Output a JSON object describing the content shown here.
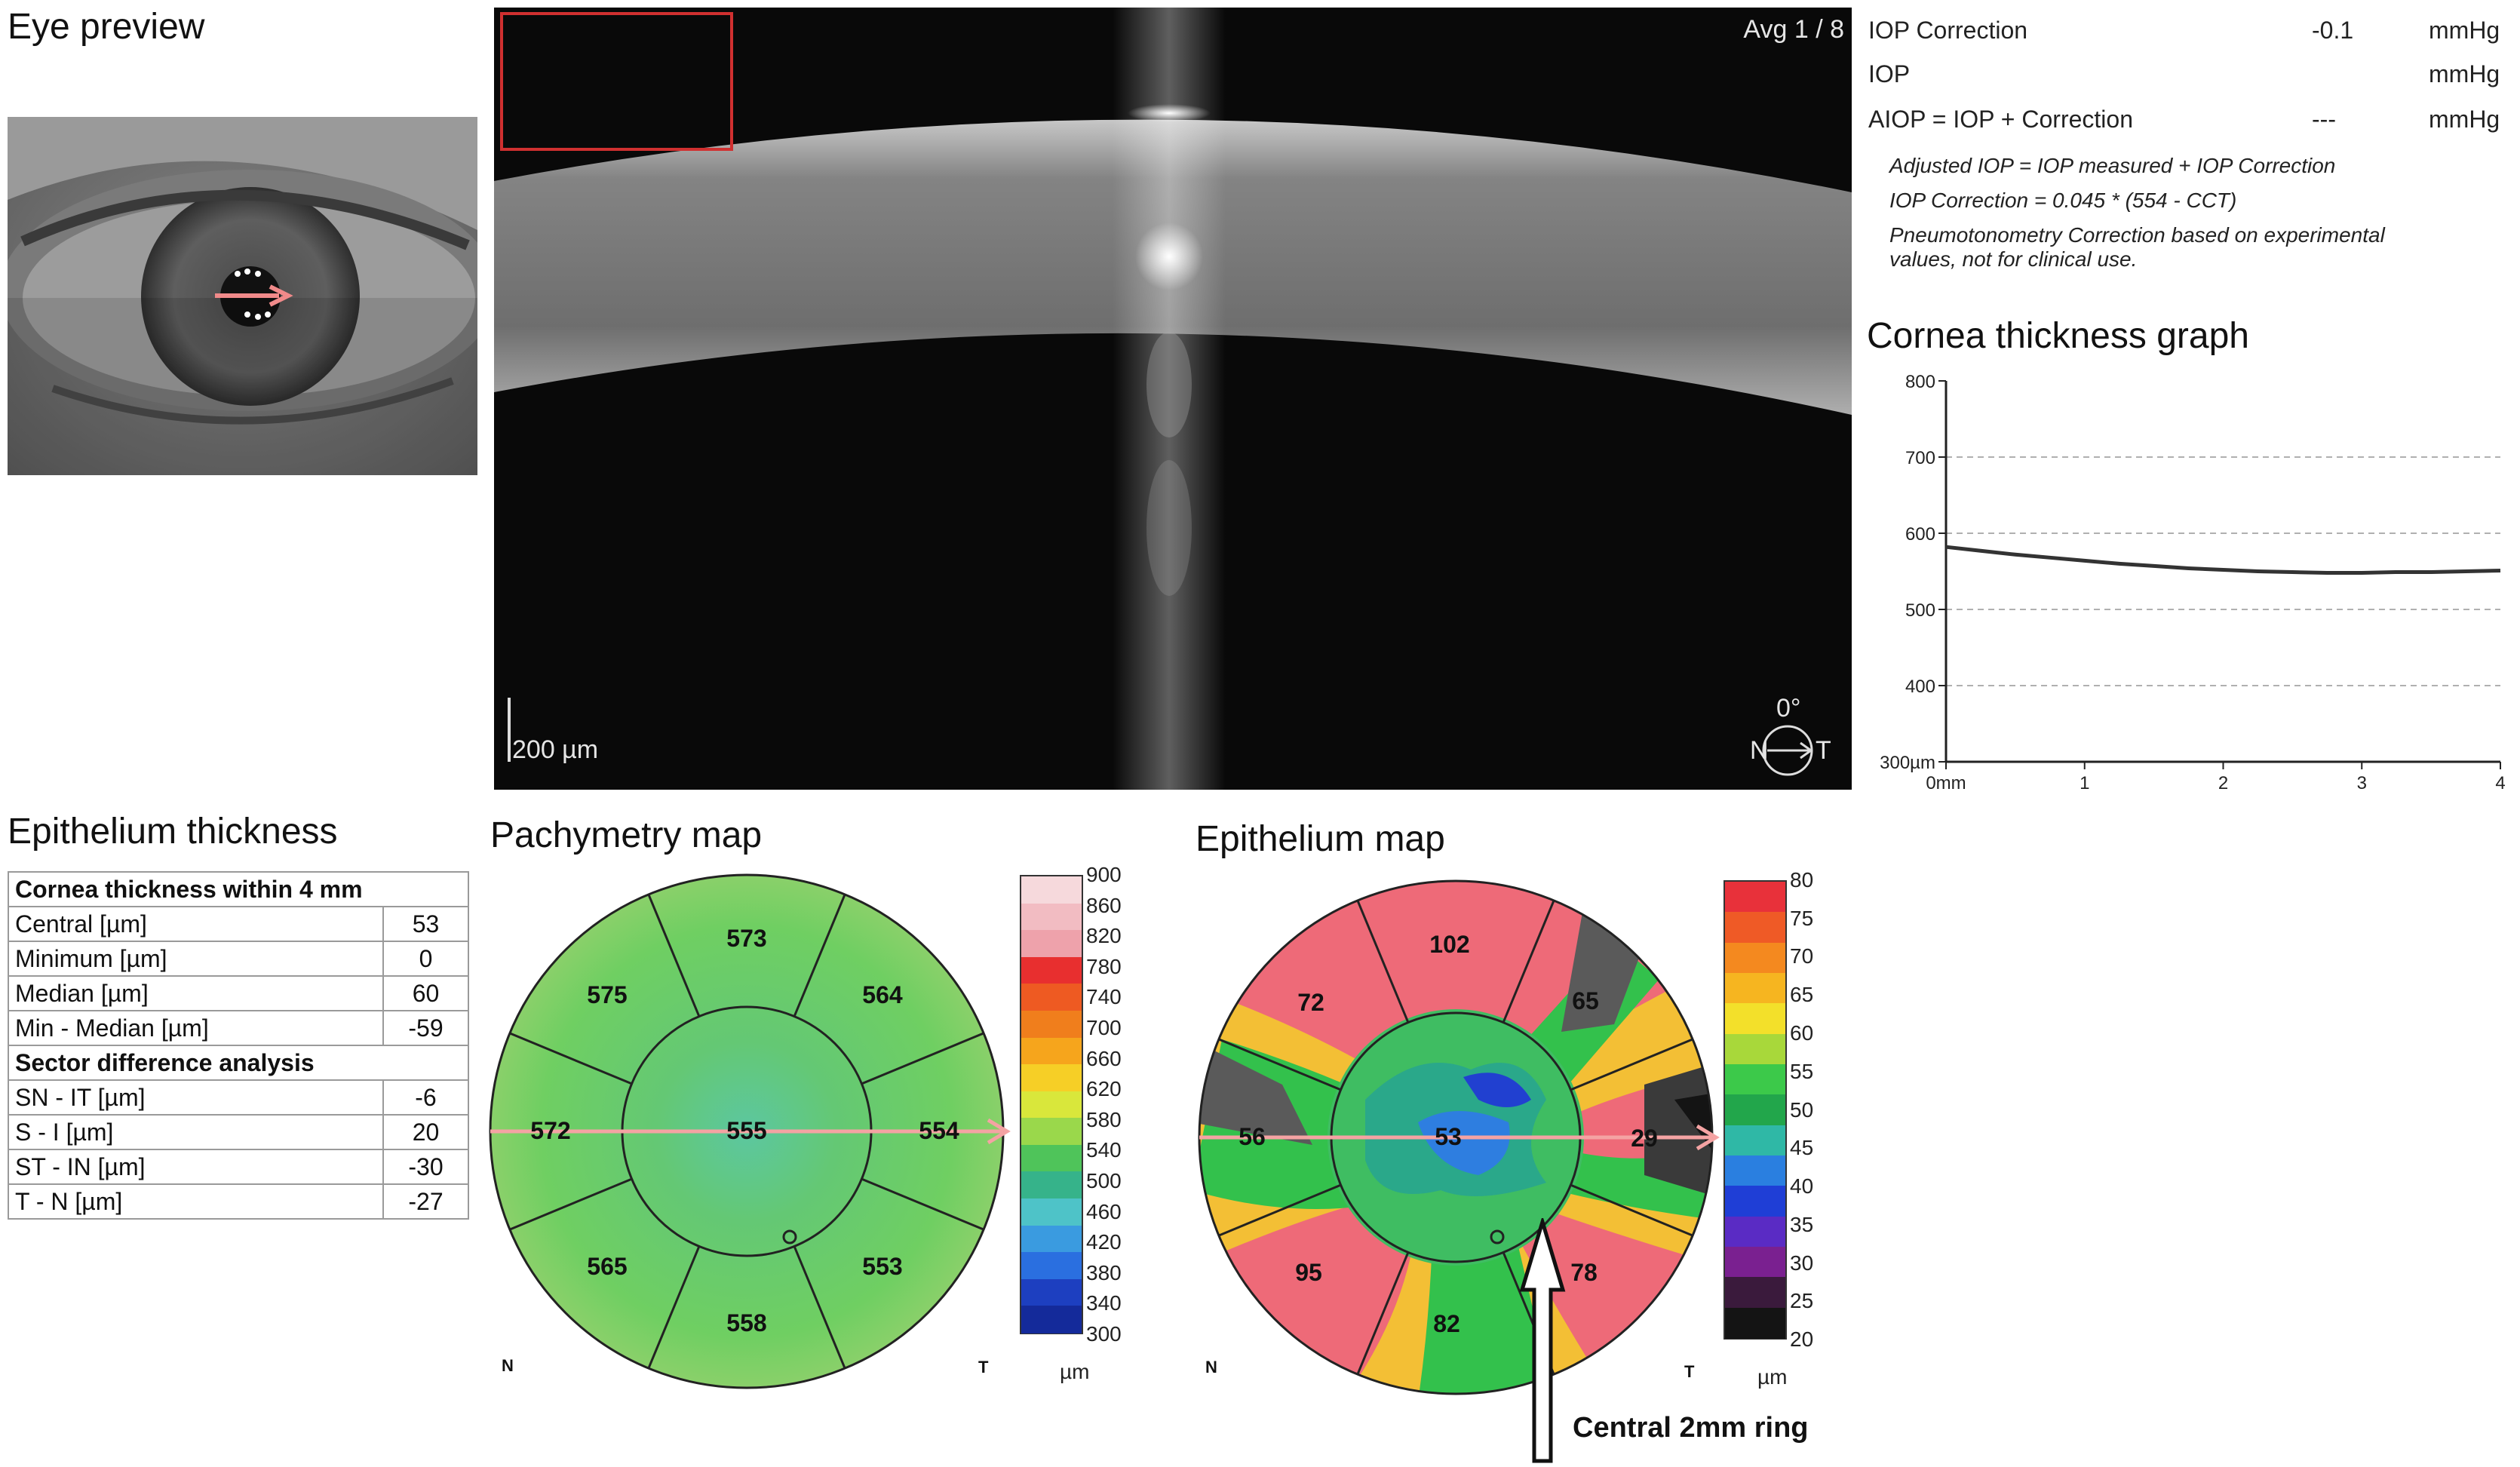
{
  "eye_preview": {
    "title": "Eye preview"
  },
  "oct": {
    "avg_label": "Avg 1 / 8",
    "scale_bar": "200 µm",
    "angle": "0°",
    "n_label": "N",
    "t_label": "T"
  },
  "iop": {
    "rows": [
      {
        "label": "IOP Correction",
        "value": "-0.1",
        "unit": "mmHg"
      },
      {
        "label": "IOP",
        "value": "",
        "unit": "mmHg"
      },
      {
        "label": "AIOP = IOP + Correction",
        "value": "---",
        "unit": "mmHg"
      }
    ],
    "notes": [
      "Adjusted IOP = IOP measured + IOP Correction",
      "IOP Correction = 0.045 * (554 - CCT)",
      "Pneumotonometry Correction based on experimental",
      "values, not for clinical use."
    ]
  },
  "thickness_graph": {
    "title": "Cornea thickness graph",
    "chart_data": {
      "type": "line",
      "ytick_labels": [
        "800",
        "700",
        "600",
        "500",
        "400",
        "300µm"
      ],
      "xtick_labels": [
        "0mm",
        "1",
        "2",
        "3",
        "4"
      ],
      "ylim": [
        300,
        800
      ],
      "xlim": [
        0,
        4
      ],
      "grid": "dashed horizontal",
      "x": [
        0,
        0.25,
        0.5,
        0.75,
        1.0,
        1.25,
        1.5,
        1.75,
        2.0,
        2.25,
        2.5,
        2.75,
        3.0,
        3.25,
        3.5,
        3.75,
        4.0
      ],
      "y": [
        582,
        577,
        572,
        568,
        564,
        560,
        557,
        554,
        552,
        550,
        549,
        548,
        548,
        549,
        549,
        550,
        551
      ]
    }
  },
  "epithelium_thickness": {
    "title": "Epithelium thickness",
    "section1": "Cornea thickness within 4 mm",
    "rows1": [
      {
        "label": "Central [µm]",
        "value": "53"
      },
      {
        "label": "Minimum [µm]",
        "value": "0"
      },
      {
        "label": "Median [µm]",
        "value": "60"
      },
      {
        "label": "Min - Median [µm]",
        "value": "-59"
      }
    ],
    "section2": "Sector difference analysis",
    "rows2": [
      {
        "label": "SN - IT [µm]",
        "value": "-6"
      },
      {
        "label": "S - I [µm]",
        "value": "20"
      },
      {
        "label": "ST - IN [µm]",
        "value": "-30"
      },
      {
        "label": "T - N [µm]",
        "value": "-27"
      }
    ]
  },
  "pachymetry_map": {
    "title": "Pachymetry map",
    "center": "555",
    "inner_sectors": [
      "573",
      "564",
      "554",
      "553",
      "558",
      "565",
      "572",
      "575"
    ],
    "n_label": "N",
    "t_label": "T",
    "scale_unit": "µm",
    "scale_labels": [
      "900",
      "860",
      "820",
      "780",
      "740",
      "700",
      "660",
      "620",
      "580",
      "540",
      "500",
      "460",
      "420",
      "380",
      "340",
      "300"
    ],
    "scale_colors": [
      "#f6d9dc",
      "#f2bcc2",
      "#eea2ab",
      "#e82f2f",
      "#ee5a22",
      "#f07e1c",
      "#f6a51c",
      "#f6cf26",
      "#d9e73b",
      "#9ad84b",
      "#4fc45a",
      "#36b38a",
      "#4ec3c8",
      "#3a9be0",
      "#2a6fe0",
      "#1d3fc0",
      "#142a9a"
    ]
  },
  "epithelium_map": {
    "title": "Epithelium map",
    "center": "53",
    "inner_sectors": [
      "102",
      "65",
      "29",
      "78",
      "82",
      "95",
      "56",
      "72"
    ],
    "n_label": "N",
    "t_label": "T",
    "scale_unit": "µm",
    "scale_labels": [
      "80",
      "75",
      "70",
      "65",
      "60",
      "55",
      "50",
      "45",
      "40",
      "35",
      "30",
      "25",
      "20"
    ],
    "scale_colors": [
      "#e8313a",
      "#ef5a26",
      "#f4891f",
      "#f6b520",
      "#f3e02a",
      "#a8d83a",
      "#3cc94a",
      "#22a64b",
      "#2fb8a6",
      "#2a7fe0",
      "#1f3ed6",
      "#5a2bc4",
      "#7a2090",
      "#3a1a3c",
      "#141414"
    ],
    "annotation": "Central 2mm ring"
  }
}
